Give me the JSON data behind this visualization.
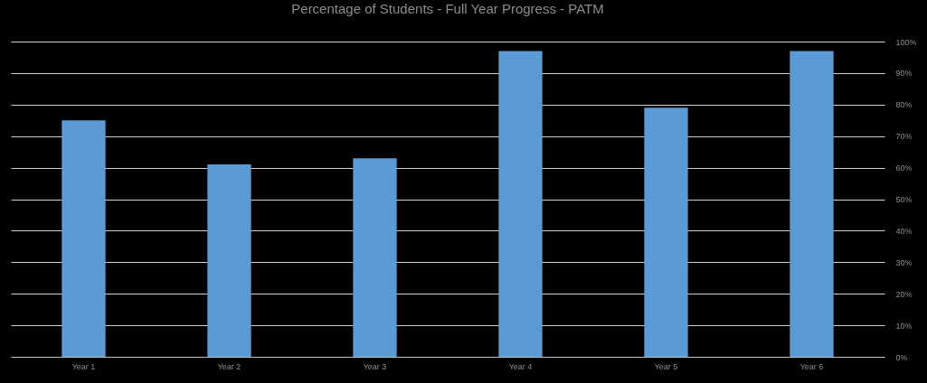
{
  "chart_data": {
    "type": "bar",
    "title": "Percentage of Students - Full Year Progress - PATM",
    "categories": [
      "Year 1",
      "Year 2",
      "Year 3",
      "Year 4",
      "Year 5",
      "Year 6"
    ],
    "values": [
      75,
      61,
      63,
      97,
      79,
      97
    ],
    "color": "#5b9bd5",
    "ylim": [
      0,
      100
    ],
    "yticks": [
      {
        "value": 0,
        "label": "0%"
      },
      {
        "value": 10,
        "label": "10%"
      },
      {
        "value": 20,
        "label": "20%"
      },
      {
        "value": 30,
        "label": "30%"
      },
      {
        "value": 40,
        "label": "40%"
      },
      {
        "value": 50,
        "label": "50%"
      },
      {
        "value": 60,
        "label": "60%"
      },
      {
        "value": 70,
        "label": "70%"
      },
      {
        "value": 80,
        "label": "80%"
      },
      {
        "value": 90,
        "label": "90%"
      },
      {
        "value": 100,
        "label": "100%"
      }
    ],
    "grid": true
  }
}
